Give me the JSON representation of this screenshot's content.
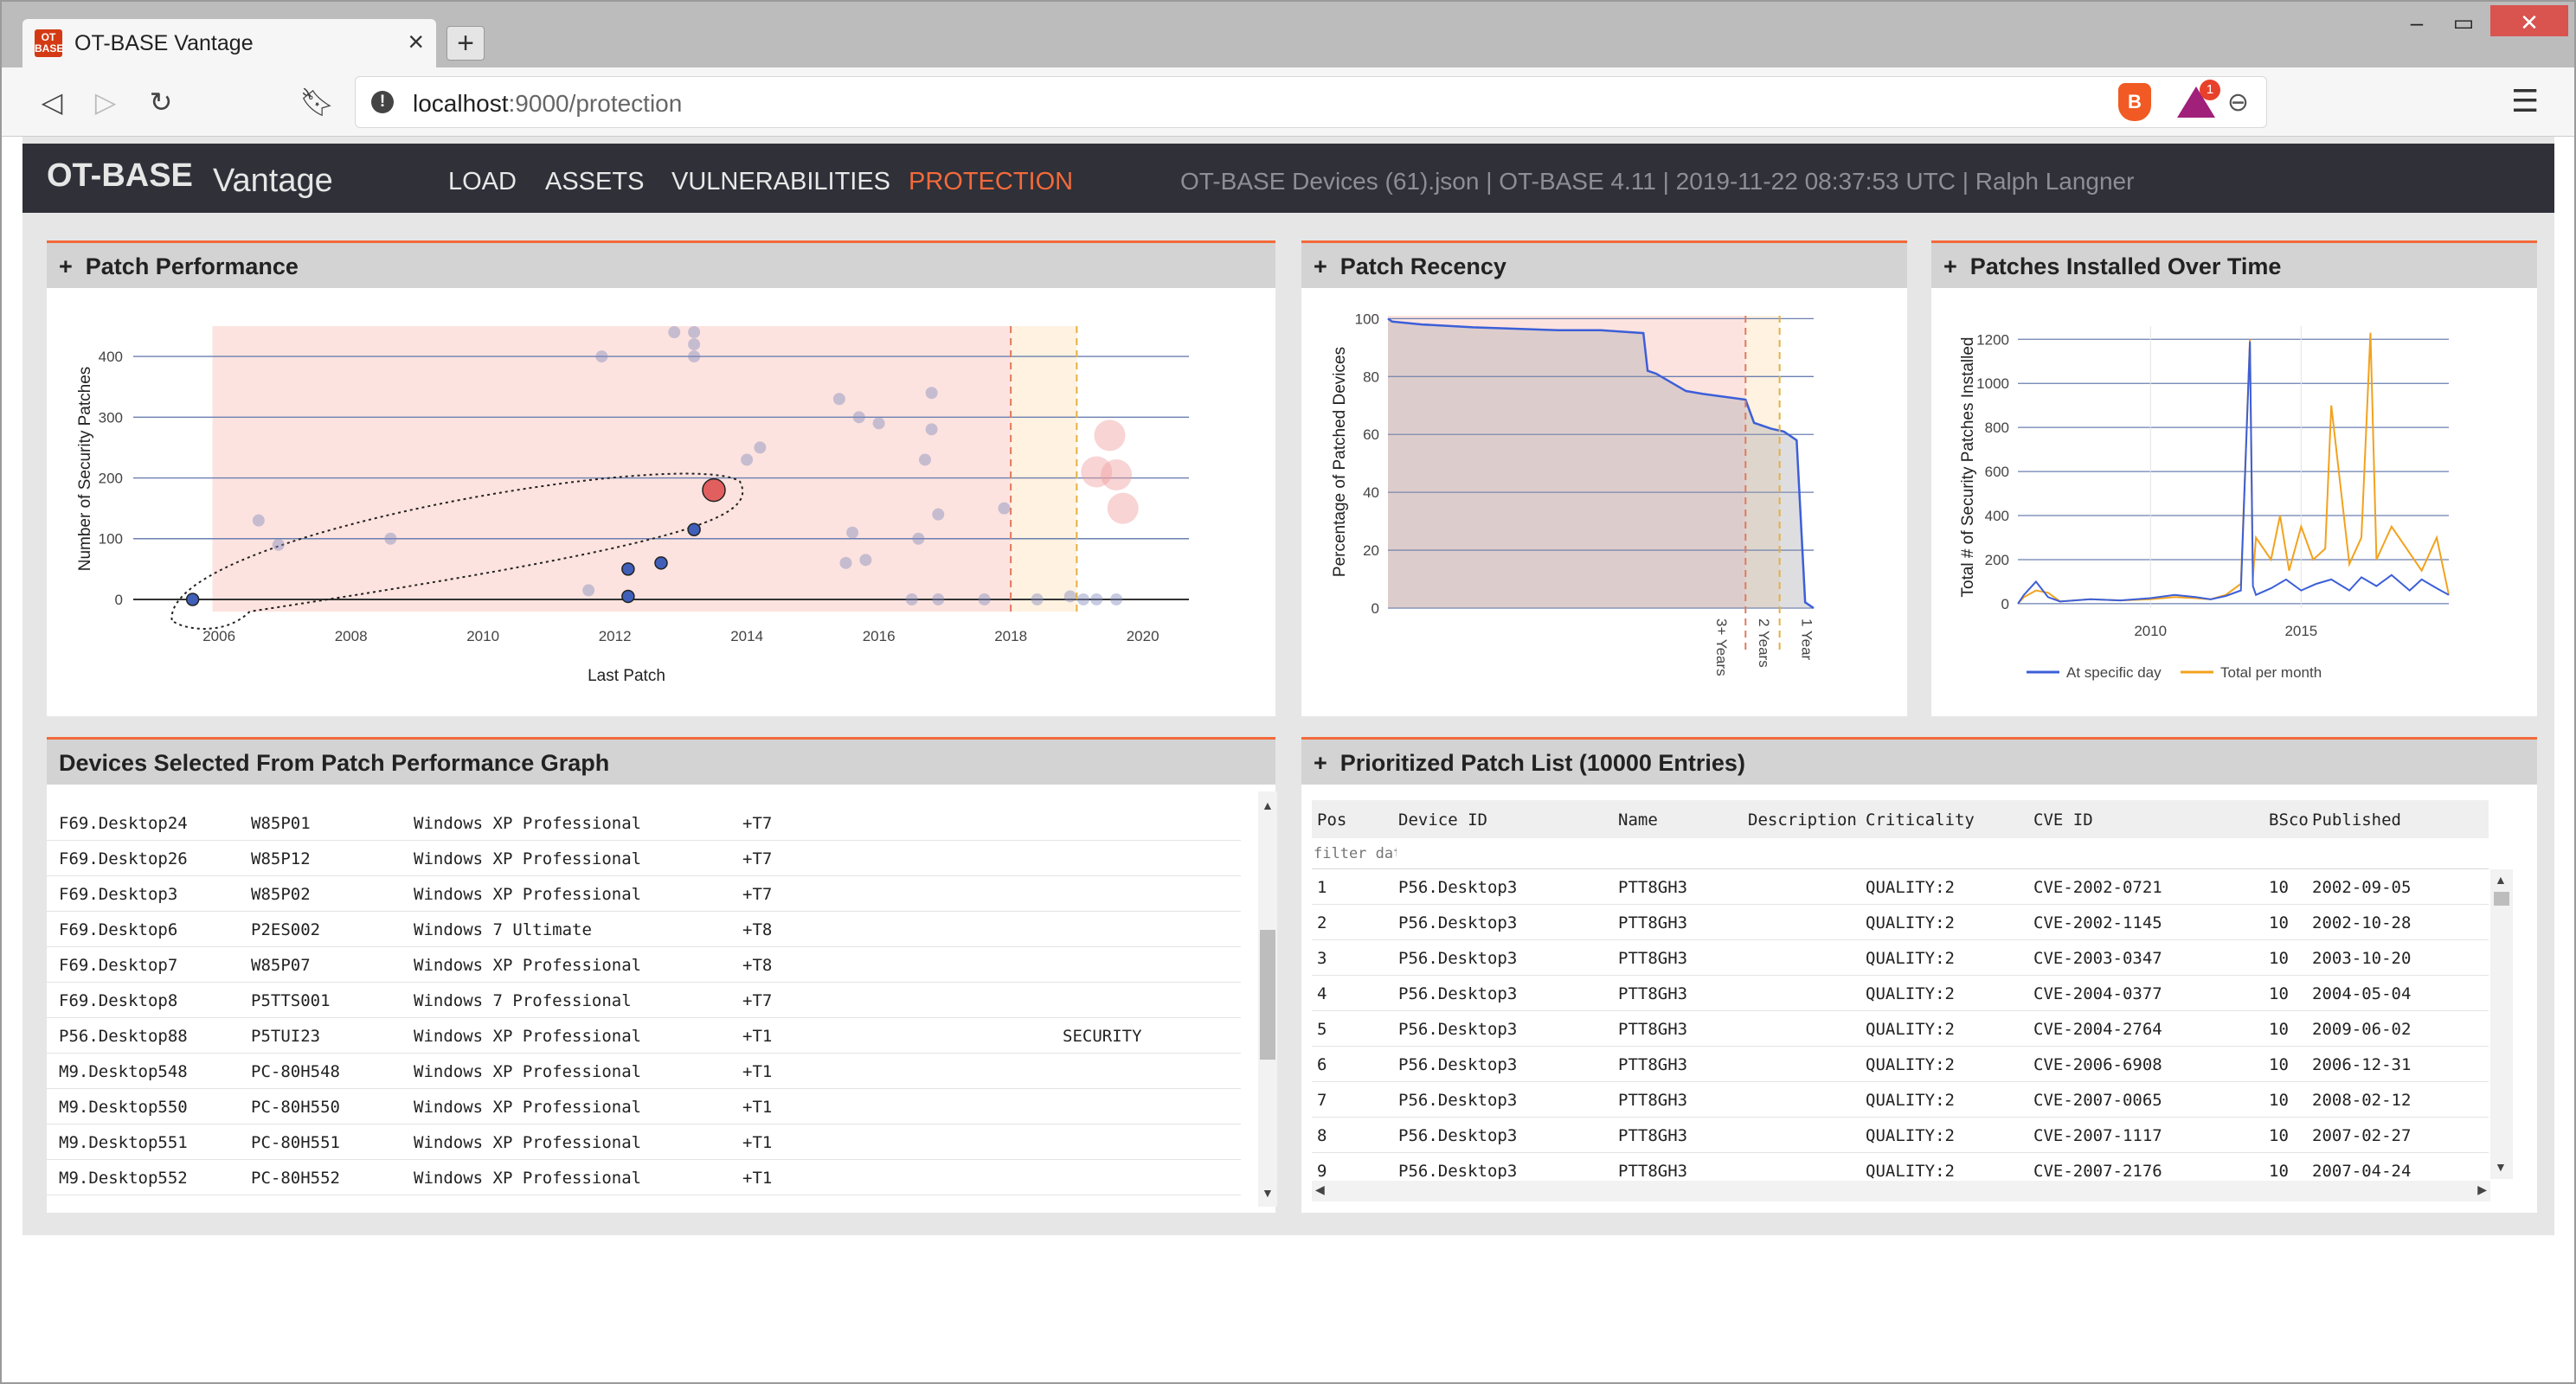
{
  "browser": {
    "tab_title": "OT-BASE Vantage",
    "tab_icon": "ot-base-favicon",
    "url_host": "localhost",
    "url_path": ":9000/protection",
    "brave_badge": "1"
  },
  "app": {
    "logo_bold": "OT-BASE",
    "logo_light": "Vantage",
    "nav": [
      "LOAD",
      "ASSETS",
      "VULNERABILITIES",
      "PROTECTION"
    ],
    "active_nav": "PROTECTION",
    "info": "OT-BASE Devices (61).json | OT-BASE 4.11 | 2019-11-22 08:37:53 UTC | Ralph Langner",
    "accent_color": "#f26a3b"
  },
  "panels": {
    "patch_performance": "Patch Performance",
    "patch_recency": "Patch Recency",
    "patches_over_time": "Patches Installed Over Time",
    "devices_selected": "Devices Selected From Patch Performance Graph",
    "prioritized": "Prioritized Patch List (10000 Entries)"
  },
  "chart_data": [
    {
      "type": "scatter",
      "title": "Patch Performance",
      "xlabel": "Last Patch",
      "ylabel": "Number of Security Patches",
      "x_ticks": [
        "2006",
        "2008",
        "2010",
        "2012",
        "2014",
        "2016",
        "2018",
        "2020"
      ],
      "y_ticks": [
        "0",
        "100",
        "200",
        "300",
        "400"
      ],
      "xlim": [
        2004.7,
        2020.7
      ],
      "ylim": [
        -20,
        450
      ],
      "points": [
        {
          "x": 2005.6,
          "y": 0,
          "selected": true
        },
        {
          "x": 2006.6,
          "y": 130
        },
        {
          "x": 2006.9,
          "y": 90
        },
        {
          "x": 2008.6,
          "y": 100
        },
        {
          "x": 2011.8,
          "y": 400
        },
        {
          "x": 2011.6,
          "y": 15
        },
        {
          "x": 2012.2,
          "y": 50,
          "selected": true
        },
        {
          "x": 2012.2,
          "y": 5,
          "selected": true
        },
        {
          "x": 2012.7,
          "y": 60,
          "selected": true
        },
        {
          "x": 2013.2,
          "y": 115,
          "selected": true
        },
        {
          "x": 2013.5,
          "y": 180,
          "highlight": true
        },
        {
          "x": 2012.9,
          "y": 440
        },
        {
          "x": 2013.2,
          "y": 440
        },
        {
          "x": 2013.2,
          "y": 420
        },
        {
          "x": 2013.2,
          "y": 400
        },
        {
          "x": 2014.0,
          "y": 230
        },
        {
          "x": 2014.2,
          "y": 250
        },
        {
          "x": 2015.4,
          "y": 330
        },
        {
          "x": 2015.7,
          "y": 300
        },
        {
          "x": 2016.0,
          "y": 290
        },
        {
          "x": 2016.7,
          "y": 230
        },
        {
          "x": 2016.8,
          "y": 340
        },
        {
          "x": 2016.8,
          "y": 280
        },
        {
          "x": 2015.5,
          "y": 60
        },
        {
          "x": 2015.8,
          "y": 65
        },
        {
          "x": 2015.6,
          "y": 110
        },
        {
          "x": 2016.6,
          "y": 100
        },
        {
          "x": 2016.9,
          "y": 140
        },
        {
          "x": 2017.9,
          "y": 150
        },
        {
          "x": 2016.5,
          "y": 0
        },
        {
          "x": 2016.9,
          "y": 0
        },
        {
          "x": 2017.6,
          "y": 0
        },
        {
          "x": 2018.4,
          "y": 0
        },
        {
          "x": 2018.9,
          "y": 5
        },
        {
          "x": 2019.1,
          "y": 0
        },
        {
          "x": 2019.3,
          "y": 0
        },
        {
          "x": 2019.6,
          "y": 0
        },
        {
          "x": 2019.5,
          "y": 270
        },
        {
          "x": 2019.3,
          "y": 210
        },
        {
          "x": 2019.6,
          "y": 205
        },
        {
          "x": 2019.7,
          "y": 150
        }
      ],
      "shaded_regions": [
        {
          "from": 2005.9,
          "to": 2018.0,
          "color": "#fde3df"
        },
        {
          "from": 2018.0,
          "to": 2019.0,
          "color": "#fff2e0"
        }
      ],
      "markers": [
        2018.0,
        2019.0
      ]
    },
    {
      "type": "area",
      "title": "Patch Recency",
      "ylabel": "Percentage of Patched Devices",
      "y_ticks": [
        "0",
        "20",
        "40",
        "60",
        "80",
        "100"
      ],
      "x_tick_labels": [
        "3+ Years",
        "2 Years",
        "1 Year"
      ],
      "x": [
        0,
        1,
        8,
        20,
        40,
        50,
        60,
        61,
        63,
        70,
        74,
        84,
        86,
        90,
        93,
        96,
        98,
        100
      ],
      "values": [
        100,
        99,
        98,
        97,
        96,
        96,
        95,
        82,
        81,
        75,
        74,
        72,
        64,
        62,
        61,
        58,
        2,
        0
      ]
    },
    {
      "type": "line",
      "title": "Patches Installed Over Time",
      "ylabel": "Total # of Security Patches Installed",
      "x_ticks": [
        "2010",
        "2015"
      ],
      "y_ticks": [
        "0",
        "200",
        "400",
        "600",
        "800",
        "1000",
        "1200"
      ],
      "xlim": [
        2005.6,
        2019.9
      ],
      "ylim": [
        -20,
        1260
      ],
      "series": [
        {
          "name": "At specific day",
          "color": "#3c5fd8",
          "x": [
            2005.6,
            2005.8,
            2006.2,
            2006.6,
            2007.0,
            2008.0,
            2009.0,
            2010.0,
            2010.8,
            2011.5,
            2012.0,
            2012.5,
            2013.0,
            2013.3,
            2013.4,
            2013.5,
            2014.0,
            2014.5,
            2015.0,
            2015.5,
            2016.0,
            2016.6,
            2017.0,
            2017.5,
            2018.0,
            2018.6,
            2019.0,
            2019.5,
            2019.9
          ],
          "values": [
            0,
            40,
            100,
            30,
            10,
            20,
            15,
            25,
            40,
            30,
            20,
            35,
            60,
            1190,
            80,
            40,
            70,
            110,
            60,
            90,
            110,
            60,
            120,
            80,
            130,
            60,
            110,
            70,
            40
          ]
        },
        {
          "name": "Total per month",
          "color": "#f2a21e",
          "x": [
            2005.6,
            2005.8,
            2006.2,
            2006.6,
            2007.0,
            2008.0,
            2009.0,
            2010.0,
            2010.8,
            2011.5,
            2012.0,
            2012.5,
            2013.0,
            2013.3,
            2013.4,
            2013.5,
            2014.0,
            2014.3,
            2014.6,
            2015.0,
            2015.4,
            2015.8,
            2016.0,
            2016.6,
            2017.0,
            2017.3,
            2017.5,
            2018.0,
            2018.5,
            2019.0,
            2019.5,
            2019.9
          ],
          "values": [
            0,
            30,
            60,
            50,
            10,
            20,
            15,
            20,
            30,
            25,
            20,
            40,
            90,
            1200,
            120,
            300,
            200,
            400,
            150,
            350,
            200,
            250,
            900,
            180,
            300,
            1230,
            200,
            350,
            250,
            150,
            300,
            40
          ]
        }
      ]
    }
  ],
  "devices": [
    [
      "F69.Desktop24",
      "W85P01",
      "Windows XP Professional",
      "+T7",
      ""
    ],
    [
      "F69.Desktop26",
      "W85P12",
      "Windows XP Professional",
      "+T7",
      ""
    ],
    [
      "F69.Desktop3",
      "W85P02",
      "Windows XP Professional",
      "+T7",
      ""
    ],
    [
      "F69.Desktop6",
      "P2ES002",
      "Windows 7 Ultimate",
      "+T8",
      ""
    ],
    [
      "F69.Desktop7",
      "W85P07",
      "Windows XP Professional",
      "+T8",
      ""
    ],
    [
      "F69.Desktop8",
      "P5TTS001",
      "Windows 7 Professional",
      "+T7",
      ""
    ],
    [
      "P56.Desktop88",
      "P5TUI23",
      "Windows XP Professional",
      "+T1",
      "SECURITY"
    ],
    [
      "M9.Desktop548",
      "PC-80H548",
      "Windows XP Professional",
      "+T1",
      ""
    ],
    [
      "M9.Desktop550",
      "PC-80H550",
      "Windows XP Professional",
      "+T1",
      ""
    ],
    [
      "M9.Desktop551",
      "PC-80H551",
      "Windows XP Professional",
      "+T1",
      ""
    ],
    [
      "M9.Desktop552",
      "PC-80H552",
      "Windows XP Professional",
      "+T1",
      ""
    ]
  ],
  "patch_list": {
    "columns": [
      "Pos",
      "Device ID",
      "Name",
      "Description",
      "Criticality",
      "CVE ID",
      "BSco",
      "Published"
    ],
    "filter_placeholder": "filter dat",
    "rows": [
      [
        "1",
        "P56.Desktop3",
        "PTT8GH3",
        "QUALITY:2",
        "CVE-2002-0721",
        "10",
        "2002-09-05"
      ],
      [
        "2",
        "P56.Desktop3",
        "PTT8GH3",
        "QUALITY:2",
        "CVE-2002-1145",
        "10",
        "2002-10-28"
      ],
      [
        "3",
        "P56.Desktop3",
        "PTT8GH3",
        "QUALITY:2",
        "CVE-2003-0347",
        "10",
        "2003-10-20"
      ],
      [
        "4",
        "P56.Desktop3",
        "PTT8GH3",
        "QUALITY:2",
        "CVE-2004-0377",
        "10",
        "2004-05-04"
      ],
      [
        "5",
        "P56.Desktop3",
        "PTT8GH3",
        "QUALITY:2",
        "CVE-2004-2764",
        "10",
        "2009-06-02"
      ],
      [
        "6",
        "P56.Desktop3",
        "PTT8GH3",
        "QUALITY:2",
        "CVE-2006-6908",
        "10",
        "2006-12-31"
      ],
      [
        "7",
        "P56.Desktop3",
        "PTT8GH3",
        "QUALITY:2",
        "CVE-2007-0065",
        "10",
        "2008-02-12"
      ],
      [
        "8",
        "P56.Desktop3",
        "PTT8GH3",
        "QUALITY:2",
        "CVE-2007-1117",
        "10",
        "2007-02-27"
      ],
      [
        "9",
        "P56.Desktop3",
        "PTT8GH3",
        "QUALITY:2",
        "CVE-2007-2176",
        "10",
        "2007-04-24"
      ]
    ]
  }
}
